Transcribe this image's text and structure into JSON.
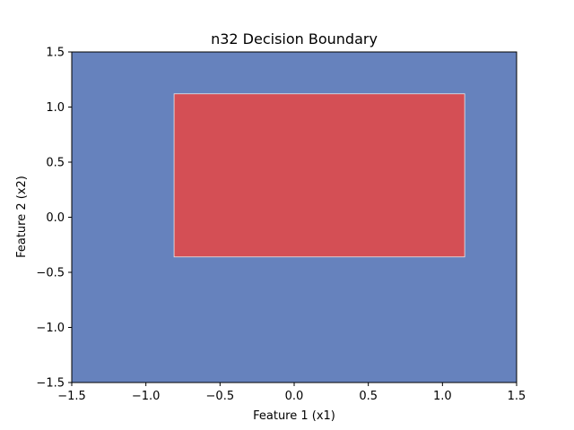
{
  "chart_data": {
    "type": "heatmap",
    "title": "n32 Decision Boundary",
    "xlabel": "Feature 1 (x1)",
    "ylabel": "Feature 2 (x2)",
    "xlim": [
      -1.5,
      1.5
    ],
    "ylim": [
      -1.5,
      1.5
    ],
    "xticks": [
      -1.5,
      -1.0,
      -0.5,
      0.0,
      0.5,
      1.0,
      1.5
    ],
    "yticks": [
      -1.5,
      -1.0,
      -0.5,
      0.0,
      0.5,
      1.0,
      1.5
    ],
    "xtick_labels": [
      "−1.5",
      "−1.0",
      "−0.5",
      "0.0",
      "0.5",
      "1.0",
      "1.5"
    ],
    "ytick_labels": [
      "−1.5",
      "−1.0",
      "−0.5",
      "0.0",
      "0.5",
      "1.0",
      "1.5"
    ],
    "grid": false,
    "regions": [
      {
        "class": "background",
        "color": "#6682bd",
        "x1": [
          -1.5,
          1.5
        ],
        "x2": [
          -1.5,
          1.5
        ]
      },
      {
        "class": "positive",
        "color": "#d44f55",
        "x1": [
          -0.81,
          1.15
        ],
        "x2": [
          -0.36,
          1.12
        ]
      }
    ]
  }
}
